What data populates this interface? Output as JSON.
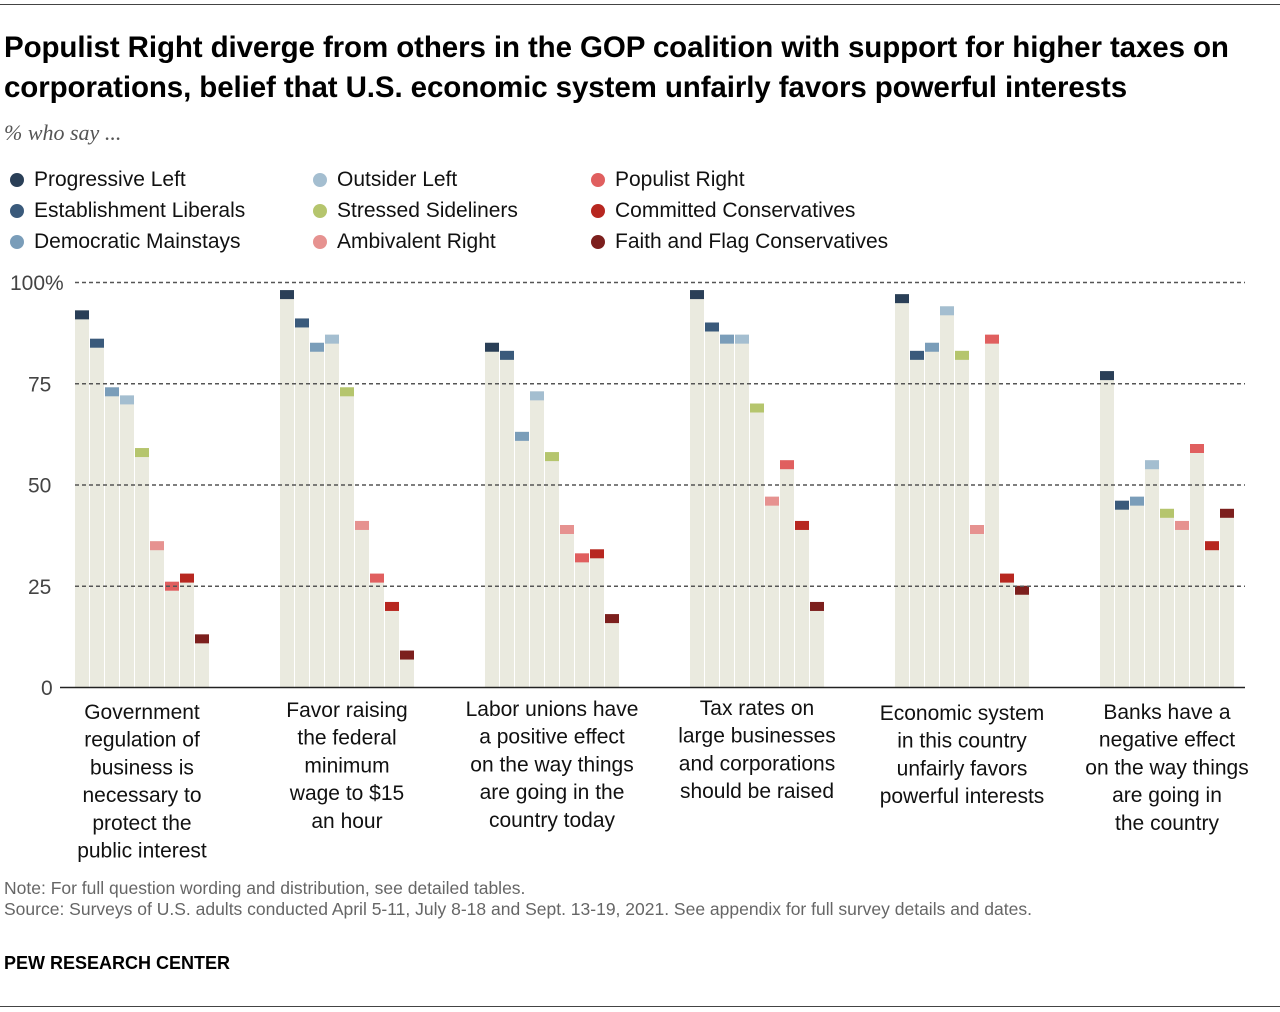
{
  "title": "Populist Right diverge from others in the GOP coalition with support for higher taxes on corporations, belief that U.S. economic system unfairly favors powerful interests",
  "subtitle": "% who say ...",
  "note": "Note: For full question wording and distribution, see detailed tables.",
  "source": "Source: Surveys of U.S. adults conducted April 5-11, July 8-18 and Sept. 13-19, 2021. See appendix for full survey details and dates.",
  "brand": "PEW RESEARCH CENTER",
  "chart_data": {
    "type": "bar",
    "ylim": [
      0,
      100
    ],
    "yticks": [
      "0",
      "25",
      "50",
      "75",
      "100%"
    ],
    "grid": true,
    "bar_background_color": "#eaeadf",
    "categories": [
      "Government regulation of business is necessary to protect the public interest",
      "Favor raising the federal minimum wage to $15 an hour",
      "Labor unions have a positive effect on the way things are going in the country today",
      "Tax rates on large businesses and corporations should be raised",
      "Economic system in this country unfairly favors powerful interests",
      "Banks have a negative effect on the way things are going in the country"
    ],
    "category_lines": [
      [
        "Government",
        "regulation of",
        "business is",
        "necessary to",
        "protect the",
        "public interest"
      ],
      [
        "Favor raising",
        "the federal",
        "minimum",
        "wage to $15",
        "an hour"
      ],
      [
        "Labor unions have",
        "a positive effect",
        "on the way things",
        "are going in the",
        "country today"
      ],
      [
        "Tax rates on",
        "large businesses",
        "and corporations",
        "should be raised"
      ],
      [
        "Economic system",
        "in this country",
        "unfairly favors",
        "powerful interests"
      ],
      [
        "Banks have a",
        "negative effect",
        "on the way things",
        "are going in",
        "the country"
      ]
    ],
    "series": [
      {
        "name": "Progressive Left",
        "color": "#2a3f57",
        "values": [
          93,
          98,
          85,
          98,
          97,
          78
        ]
      },
      {
        "name": "Establishment Liberals",
        "color": "#3a5a7b",
        "values": [
          86,
          91,
          83,
          90,
          83,
          46
        ]
      },
      {
        "name": "Democratic Mainstays",
        "color": "#7a9db9",
        "values": [
          74,
          85,
          63,
          87,
          85,
          47
        ]
      },
      {
        "name": "Outsider Left",
        "color": "#a4bed0",
        "values": [
          72,
          87,
          73,
          87,
          94,
          56
        ]
      },
      {
        "name": "Stressed Sideliners",
        "color": "#b5c56d",
        "values": [
          59,
          74,
          58,
          70,
          83,
          44
        ]
      },
      {
        "name": "Ambivalent Right",
        "color": "#e69290",
        "values": [
          36,
          41,
          40,
          47,
          40,
          41
        ]
      },
      {
        "name": "Populist Right",
        "color": "#e05f5f",
        "values": [
          26,
          28,
          33,
          56,
          87,
          60
        ]
      },
      {
        "name": "Committed Conservatives",
        "color": "#b72720",
        "values": [
          28,
          21,
          34,
          41,
          28,
          36
        ]
      },
      {
        "name": "Faith and Flag Conservatives",
        "color": "#7c1f1d",
        "values": [
          13,
          9,
          18,
          21,
          25,
          44
        ]
      }
    ],
    "legend_placement": "top"
  }
}
